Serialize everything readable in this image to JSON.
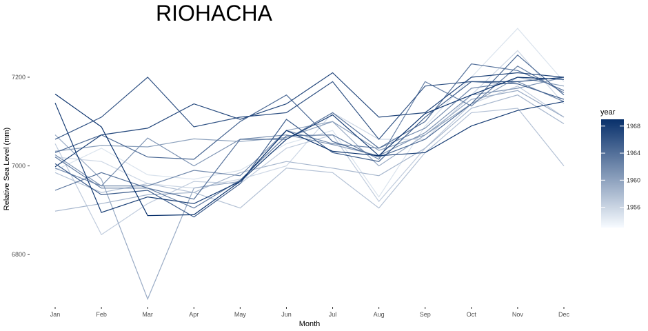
{
  "chart_data": {
    "type": "line",
    "title": "RIOHACHA",
    "xlabel": "Month",
    "ylabel": "Relative Sea Level (mm)",
    "categories": [
      "Jan",
      "Feb",
      "Mar",
      "Apr",
      "May",
      "Jun",
      "Jul",
      "Aug",
      "Sep",
      "Oct",
      "Nov",
      "Dec"
    ],
    "yticks": [
      6800,
      7000,
      7200
    ],
    "ylim": [
      6690,
      7315
    ],
    "grid": false,
    "legend": {
      "title": "year",
      "position": "right",
      "type": "colorbar",
      "range": [
        1953,
        1969
      ],
      "ticks": [
        1956,
        1960,
        1964,
        1968
      ],
      "color_low": "#f7fbff",
      "color_high": "#08306b"
    },
    "series": [
      {
        "year": 1953,
        "values": [
          6990,
          7040,
          6980,
          6970,
          6990,
          7050,
          7080,
          6930,
          7090,
          7200,
          7310,
          7190
        ]
      },
      {
        "year": 1954,
        "values": [
          7020,
          7010,
          6960,
          6950,
          6970,
          7000,
          7120,
          7060,
          7060,
          7160,
          7260,
          7140
        ]
      },
      {
        "year": 1955,
        "values": [
          7050,
          6845,
          6915,
          6965,
          6960,
          7040,
          7070,
          6920,
          7040,
          7140,
          7180,
          7110
        ]
      },
      {
        "year": 1956,
        "values": [
          6985,
          6940,
          6960,
          6940,
          6905,
          6995,
          6985,
          6905,
          7030,
          7120,
          7130,
          7000
        ]
      },
      {
        "year": 1957,
        "values": [
          6898,
          6915,
          6935,
          6940,
          6985,
          7010,
          6995,
          6978,
          7040,
          7130,
          7160,
          7095
        ]
      },
      {
        "year": 1958,
        "values": [
          7070,
          6970,
          6700,
          6950,
          6965,
          7080,
          7100,
          7000,
          7070,
          7150,
          7170,
          7110
        ]
      },
      {
        "year": 1959,
        "values": [
          7033,
          7046,
          7043,
          7061,
          7055,
          7064,
          7100,
          7035,
          7070,
          7140,
          7200,
          7180
        ]
      },
      {
        "year": 1960,
        "values": [
          7025,
          6955,
          7063,
          7000,
          7060,
          7070,
          7048,
          7023,
          7075,
          7160,
          7175,
          7200
        ]
      },
      {
        "year": 1961,
        "values": [
          6995,
          6955,
          6955,
          6990,
          6978,
          7080,
          7050,
          7040,
          7085,
          7175,
          7190,
          7145
        ]
      },
      {
        "year": 1962,
        "values": [
          7020,
          6950,
          6950,
          6905,
          6968,
          7068,
          7070,
          7015,
          7190,
          7135,
          7225,
          7165
        ]
      },
      {
        "year": 1963,
        "values": [
          6945,
          6985,
          6950,
          6925,
          7060,
          7060,
          7120,
          7040,
          7100,
          7230,
          7215,
          7170
        ]
      },
      {
        "year": 1964,
        "values": [
          7030,
          7070,
          7020,
          7015,
          7100,
          7160,
          7055,
          7020,
          7060,
          7140,
          7250,
          7160
        ]
      },
      {
        "year": 1965,
        "values": [
          7005,
          6935,
          6945,
          6885,
          6960,
          7105,
          7030,
          7010,
          7110,
          7190,
          7185,
          7150
        ]
      },
      {
        "year": 1966,
        "values": [
          7060,
          7110,
          7200,
          7088,
          7110,
          7120,
          7190,
          7060,
          7180,
          7190,
          7190,
          7200
        ]
      },
      {
        "year": 1967,
        "values": [
          6998,
          7070,
          7085,
          7140,
          7105,
          7140,
          7210,
          7110,
          7120,
          7200,
          7210,
          7200
        ]
      },
      {
        "year": 1968,
        "values": [
          7142,
          6895,
          6930,
          6915,
          6965,
          7060,
          7115,
          7023,
          7030,
          7090,
          7125,
          7145
        ]
      },
      {
        "year": 1969,
        "values": [
          7162,
          7088,
          6888,
          6890,
          6965,
          7080,
          7033,
          7023,
          7118,
          7160,
          7200,
          7195
        ]
      }
    ]
  }
}
